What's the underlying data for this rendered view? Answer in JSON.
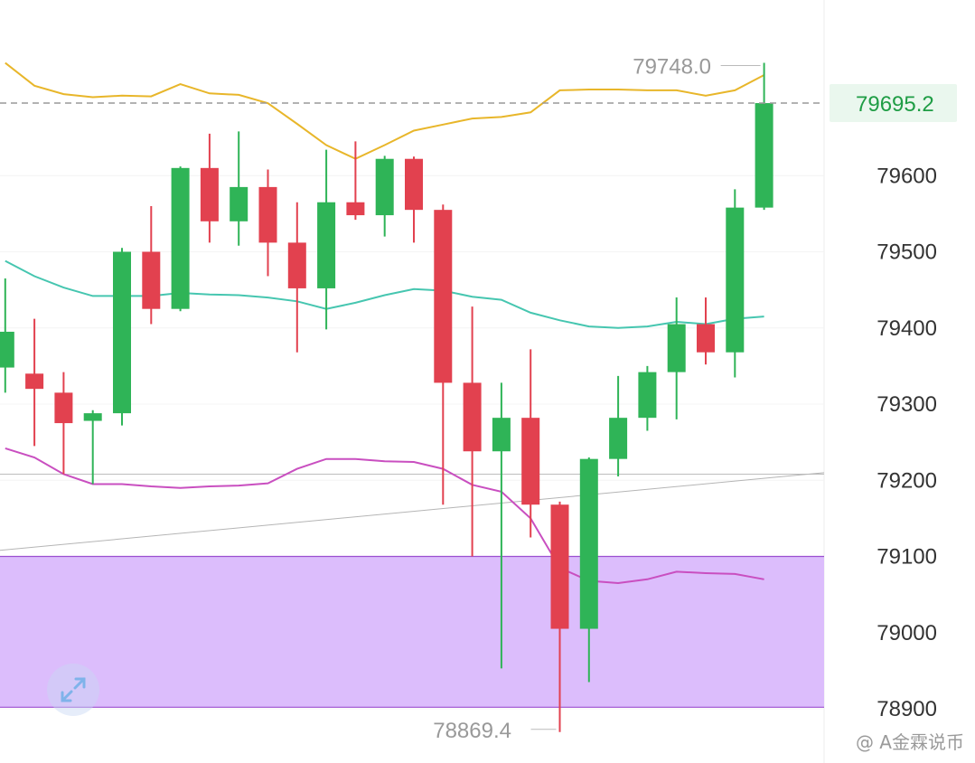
{
  "chart_data": {
    "type": "candlestick",
    "y_ticks": [
      "79600",
      "79500",
      "79400",
      "79300",
      "79200",
      "79100",
      "79000",
      "78900"
    ],
    "ylim": [
      78860,
      79840
    ],
    "current_price": 79695.2,
    "current_price_label": "79695.2",
    "high_label": "79748.0",
    "low_label": "78869.4",
    "high_value": 79748.0,
    "low_value": 78869.4,
    "candles": [
      {
        "open": 79348,
        "close": 79395,
        "high": 79465,
        "low": 79315
      },
      {
        "open": 79340,
        "close": 79320,
        "high": 79412,
        "low": 79245
      },
      {
        "open": 79315,
        "close": 79275,
        "high": 79342,
        "low": 79208
      },
      {
        "open": 79278,
        "close": 79288,
        "high": 79292,
        "low": 79195
      },
      {
        "open": 79288,
        "close": 79500,
        "high": 79505,
        "low": 79272
      },
      {
        "open": 79500,
        "close": 79425,
        "high": 79560,
        "low": 79405
      },
      {
        "open": 79425,
        "close": 79610,
        "high": 79612,
        "low": 79422
      },
      {
        "open": 79610,
        "close": 79540,
        "high": 79655,
        "low": 79512
      },
      {
        "open": 79540,
        "close": 79585,
        "high": 79658,
        "low": 79508
      },
      {
        "open": 79585,
        "close": 79512,
        "high": 79608,
        "low": 79468
      },
      {
        "open": 79512,
        "close": 79452,
        "high": 79565,
        "low": 79368
      },
      {
        "open": 79452,
        "close": 79565,
        "high": 79634,
        "low": 79398
      },
      {
        "open": 79565,
        "close": 79548,
        "high": 79645,
        "low": 79542
      },
      {
        "open": 79548,
        "close": 79622,
        "high": 79626,
        "low": 79520
      },
      {
        "open": 79622,
        "close": 79555,
        "high": 79625,
        "low": 79512
      },
      {
        "open": 79555,
        "close": 79328,
        "high": 79562,
        "low": 79168
      },
      {
        "open": 79328,
        "close": 79238,
        "high": 79428,
        "low": 79100
      },
      {
        "open": 79238,
        "close": 79282,
        "high": 79328,
        "low": 78953
      },
      {
        "open": 79282,
        "close": 79168,
        "high": 79372,
        "low": 79125
      },
      {
        "open": 79168,
        "close": 79005,
        "high": 79172,
        "low": 78869.4
      },
      {
        "open": 79005,
        "close": 79228,
        "high": 79230,
        "low": 78935
      },
      {
        "open": 79228,
        "close": 79282,
        "high": 79337,
        "low": 79205
      },
      {
        "open": 79282,
        "close": 79342,
        "high": 79350,
        "low": 79265
      },
      {
        "open": 79342,
        "close": 79405,
        "high": 79440,
        "low": 79280
      },
      {
        "open": 79405,
        "close": 79368,
        "high": 79440,
        "low": 79352
      },
      {
        "open": 79368,
        "close": 79558,
        "high": 79582,
        "low": 79335
      },
      {
        "open": 79558,
        "close": 79695.2,
        "high": 79748,
        "low": 79555
      }
    ],
    "upper_band": [
      79748,
      79718,
      79707,
      79703,
      79705,
      79704,
      79720,
      79708,
      79706,
      79695,
      79668,
      79640,
      79622,
      79640,
      79659,
      79667,
      79675,
      79677,
      79683,
      79712,
      79713,
      79713,
      79712,
      79712,
      79705,
      79712,
      79732
    ],
    "middle_band": [
      79488,
      79468,
      79453,
      79442,
      79442,
      79442,
      79446,
      79444,
      79443,
      79440,
      79435,
      79425,
      79433,
      79443,
      79451,
      79449,
      79441,
      79437,
      79420,
      79410,
      79402,
      79400,
      79402,
      79408,
      79405,
      79412,
      79415
    ],
    "lower_band": [
      79242,
      79230,
      79208,
      79195,
      79195,
      79192,
      79190,
      79192,
      79193,
      79196,
      79215,
      79228,
      79228,
      79225,
      79224,
      79215,
      79194,
      79185,
      79150,
      79085,
      79068,
      79065,
      79070,
      79080,
      79078,
      79077,
      79070
    ],
    "trend_line": {
      "start": 79108,
      "end": 79210
    },
    "horizontal_ref": 79208,
    "zone": {
      "top": 79100,
      "bottom": 78902,
      "color": "#dcbdfc"
    },
    "colors": {
      "up": "#2fb457",
      "down": "#e2414f",
      "upper_band": "#e8b62a",
      "middle_band": "#46c6b0",
      "lower_band": "#c94fc0",
      "price_line": "#999999"
    }
  },
  "watermark": "@ A金霖说币",
  "icons": {
    "expand": "expand-arrows-icon",
    "watermark": "watermark-logo-icon"
  }
}
